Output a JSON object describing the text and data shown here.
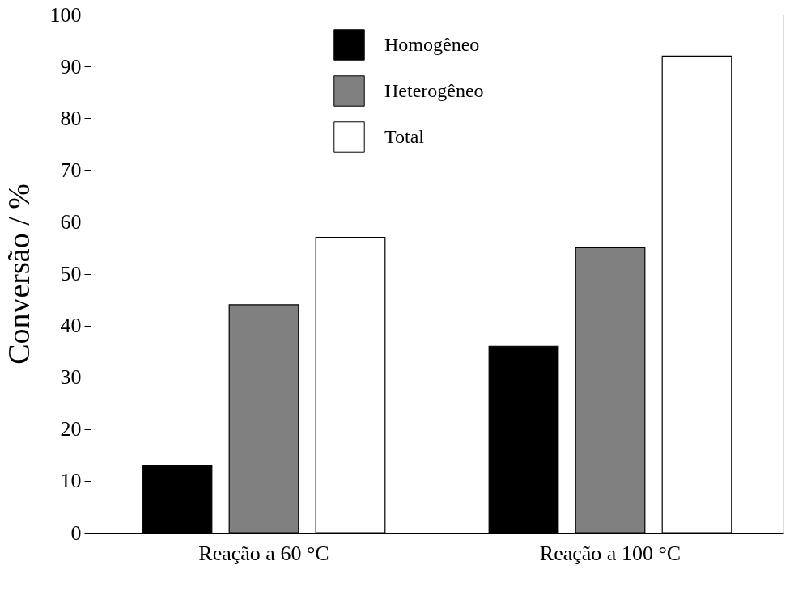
{
  "chart_data": {
    "type": "bar",
    "ylabel": "Conversão / %",
    "categories": [
      "Reação a 60 °C",
      "Reação a  100 °C"
    ],
    "series": [
      {
        "name": "Homogêneo",
        "color": "#000000",
        "values": [
          13,
          36
        ]
      },
      {
        "name": "Heterogêneo",
        "color": "#808080",
        "values": [
          44,
          55
        ]
      },
      {
        "name": "Total",
        "color": "#ffffff",
        "values": [
          57,
          92
        ]
      }
    ],
    "ylim": [
      0,
      100
    ],
    "yticks": [
      0,
      10,
      20,
      30,
      40,
      50,
      60,
      70,
      80,
      90,
      100
    ],
    "grid": false,
    "legend": "top"
  }
}
